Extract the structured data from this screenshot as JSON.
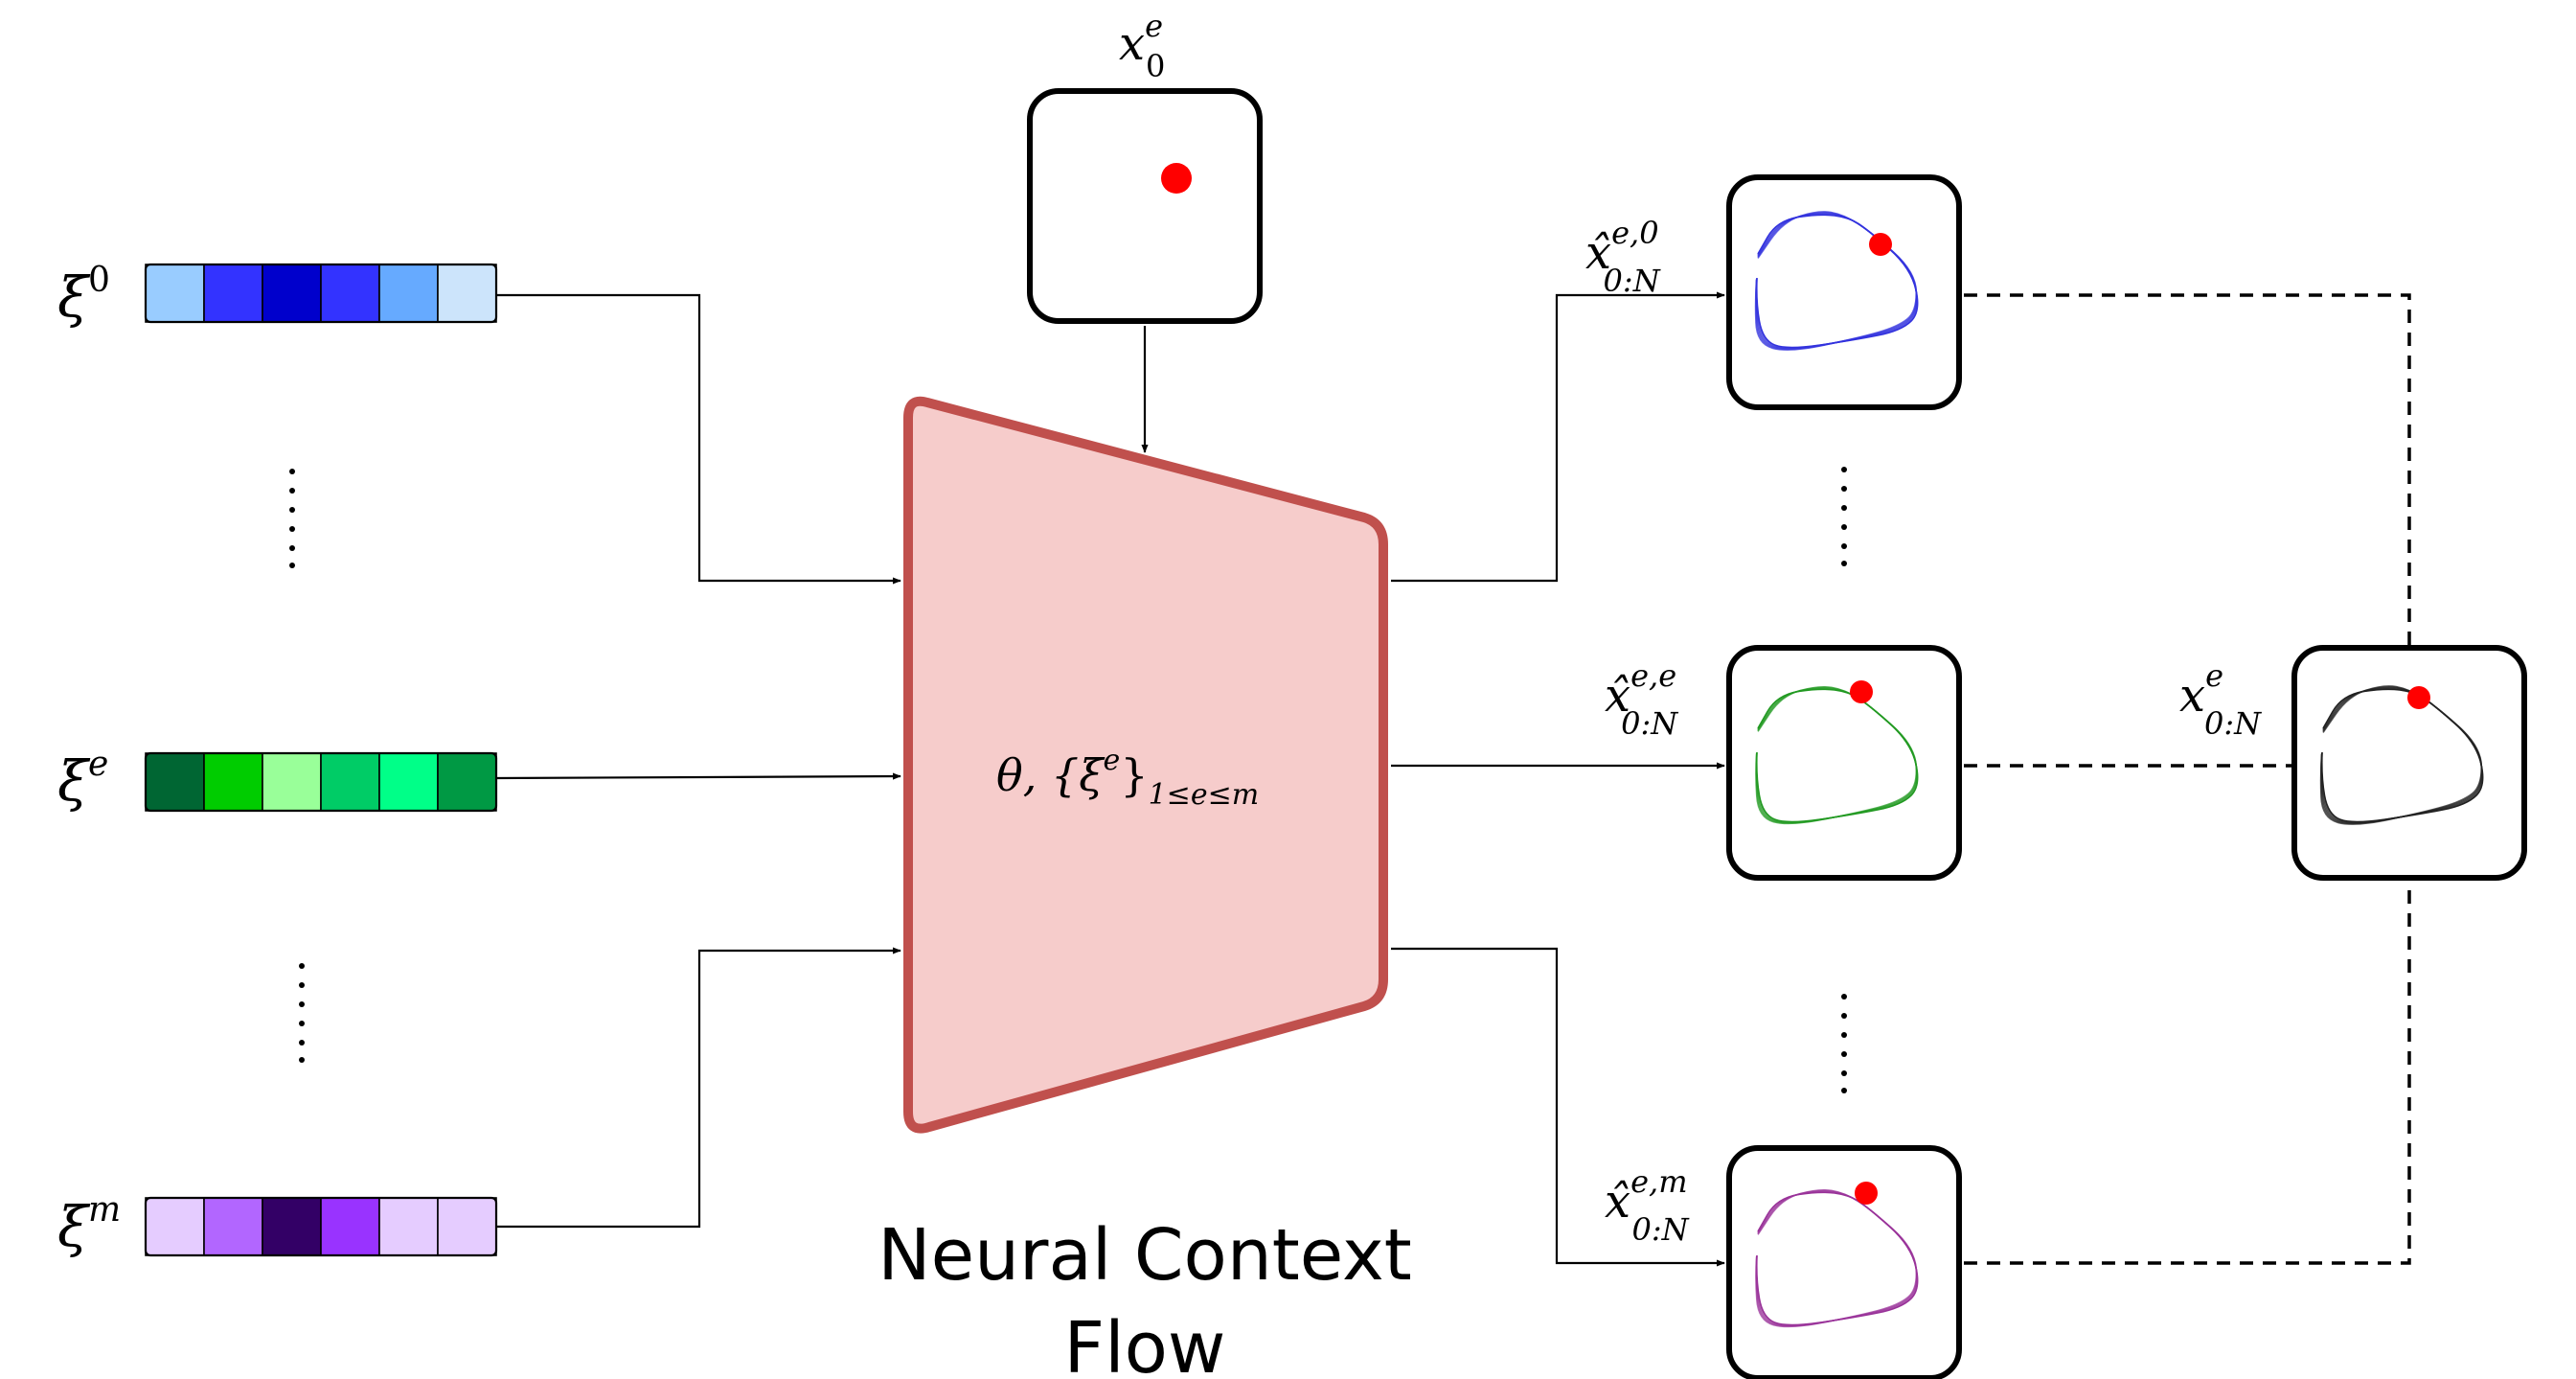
{
  "title": {
    "line1": "Neural Context",
    "line2": "Flow"
  },
  "network": {
    "theta": "θ, {ξ",
    "xi_sup": "e",
    "brace_close": "}",
    "subscript": "1≤e≤m",
    "fill_color": "#f6cccb",
    "border_color": "#c0504d"
  },
  "initial_condition": {
    "base": "x",
    "sup": "e",
    "sub": "0"
  },
  "contexts": [
    {
      "base": "ξ",
      "sup": "0",
      "colors": [
        "#99ccff",
        "#3333ff",
        "#0000cc",
        "#3333ff",
        "#66aaff",
        "#cce4fb"
      ]
    },
    {
      "base": "ξ",
      "sup": "e",
      "colors": [
        "#006633",
        "#00cc00",
        "#99ff99",
        "#00cc66",
        "#00ff88",
        "#009944"
      ]
    },
    {
      "base": "ξ",
      "sup": "m",
      "colors": [
        "#e5ccff",
        "#b266ff",
        "#330066",
        "#9933ff",
        "#e5ccff",
        "#e5ccff"
      ]
    }
  ],
  "predictions": [
    {
      "base": "x̂",
      "sup": "e,0",
      "sub": "0:N",
      "color": "#3333dd"
    },
    {
      "base": "x̂",
      "sup": "e,e",
      "sub": "0:N",
      "color": "#229922"
    },
    {
      "base": "x̂",
      "sup": "e,m",
      "sub": "0:N",
      "color": "#993399"
    }
  ],
  "ground_truth": {
    "base": "x",
    "sup": "e",
    "sub": "0:N",
    "color": "#222222"
  },
  "marker_color": "#ff0000"
}
